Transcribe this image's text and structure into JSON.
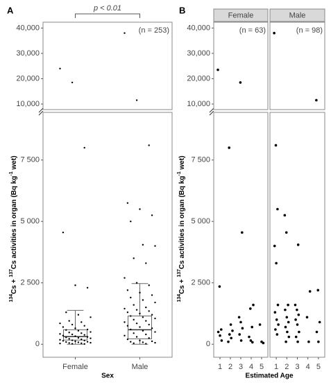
{
  "chart_data": [
    {
      "type": "box",
      "panel_label": "A",
      "annotation": "p < 0.01",
      "n_label": "(n = 253)",
      "x_label": "Sex",
      "y_label": [
        {
          "text": "134",
          "style": "sup"
        },
        {
          "text": "Cs + ",
          "style": "normal"
        },
        {
          "text": "137",
          "style": "sup"
        },
        {
          "text": "Cs activities in organ (Bq kg",
          "style": "normal"
        },
        {
          "text": "-1",
          "style": "sup"
        },
        {
          "text": " wet)",
          "style": "normal"
        }
      ],
      "categories": [
        "Female",
        "Male"
      ],
      "boxes": [
        {
          "low": 0,
          "q1": 170,
          "median": 310,
          "q3": 590,
          "high": 1380
        },
        {
          "low": 0,
          "q1": 220,
          "median": 590,
          "q3": 1150,
          "high": 2470
        }
      ],
      "points": [
        [
          24000,
          18500,
          8000,
          4550,
          2400,
          2300,
          1300,
          1200,
          1100,
          950,
          900,
          850,
          800,
          750,
          700,
          650,
          600,
          580,
          550,
          500,
          480,
          450,
          420,
          400,
          380,
          350,
          330,
          300,
          280,
          260,
          240,
          220,
          200,
          180,
          160,
          150,
          140,
          120,
          100,
          90,
          80,
          60,
          50,
          40,
          30,
          20,
          10
        ],
        [
          38000,
          11500,
          8100,
          5750,
          5500,
          5250,
          5000,
          4050,
          4000,
          3500,
          3300,
          2700,
          2500,
          2400,
          2200,
          2100,
          2000,
          1900,
          1800,
          1700,
          1600,
          1500,
          1450,
          1400,
          1350,
          1300,
          1250,
          1200,
          1150,
          1100,
          1050,
          1000,
          950,
          900,
          850,
          800,
          750,
          700,
          650,
          600,
          550,
          500,
          450,
          400,
          350,
          300,
          250,
          200,
          150,
          120,
          100,
          80,
          60,
          40,
          20
        ]
      ],
      "color": "#000000",
      "ylim": [
        -530,
        9440
      ],
      "yticks": [
        0,
        {
          "value": 2500,
          "label": "2 500"
        },
        {
          "value": 5000,
          "label": "5 000"
        },
        {
          "value": 7500,
          "label": "7 500"
        }
      ],
      "ylim_upper": [
        7800,
        42300
      ],
      "yticks_upper": [
        {
          "value": 10000,
          "label": "10,000"
        },
        {
          "value": 20000,
          "label": "20,000"
        },
        {
          "value": 30000,
          "label": "30,000"
        },
        {
          "value": 40000,
          "label": "40,000"
        }
      ]
    },
    {
      "type": "scatter",
      "panel_label": "B",
      "x_label": "Estimated Age",
      "y_label": [
        {
          "text": "134",
          "style": "sup"
        },
        {
          "text": "Cs + ",
          "style": "normal"
        },
        {
          "text": "137",
          "style": "sup"
        },
        {
          "text": "Cs activities in organ (Bq kg",
          "style": "normal"
        },
        {
          "text": "-1",
          "style": "sup"
        },
        {
          "text": " wet)",
          "style": "normal"
        }
      ],
      "color": "#000000",
      "facets": [
        {
          "name": "Female",
          "n_label": "(n = 63)",
          "x": [
            1,
            1,
            1,
            1,
            1,
            1,
            2,
            2,
            2,
            2,
            2,
            2,
            3,
            3,
            3,
            3,
            3,
            3,
            3,
            4,
            4,
            4,
            4,
            4,
            4,
            5,
            5,
            5
          ],
          "y": [
            23500,
            2350,
            600,
            500,
            350,
            150,
            8000,
            800,
            550,
            400,
            250,
            100,
            18500,
            4550,
            1100,
            900,
            650,
            400,
            150,
            1600,
            1450,
            700,
            300,
            150,
            80,
            800,
            100,
            50
          ]
        },
        {
          "name": "Male",
          "n_label": "(n = 98)",
          "x": [
            1,
            1,
            1,
            1,
            1,
            1,
            1,
            1,
            1,
            1,
            1,
            2,
            2,
            2,
            2,
            2,
            2,
            2,
            2,
            2,
            2,
            3,
            3,
            3,
            3,
            3,
            3,
            3,
            3,
            3,
            4,
            4,
            4,
            5,
            5,
            5,
            5,
            5
          ],
          "y": [
            38000,
            8100,
            5500,
            4000,
            3300,
            1600,
            1300,
            1000,
            800,
            600,
            400,
            5250,
            4550,
            1600,
            1400,
            1100,
            900,
            700,
            500,
            300,
            100,
            4050,
            1600,
            1400,
            1200,
            1000,
            800,
            500,
            300,
            100,
            2150,
            1100,
            100,
            11500,
            2200,
            900,
            500,
            100
          ]
        }
      ],
      "xlim": [
        0.4,
        5.6
      ],
      "xticks": [
        1,
        2,
        3,
        4,
        5
      ],
      "ylim": [
        -530,
        9440
      ],
      "yticks": [
        0,
        {
          "value": 2500,
          "label": "2 500"
        },
        {
          "value": 5000,
          "label": "5 000"
        },
        {
          "value": 7500,
          "label": "7 500"
        }
      ],
      "ylim_upper": [
        7800,
        42300
      ],
      "yticks_upper": [
        {
          "value": 10000,
          "label": "10,000"
        },
        {
          "value": 20000,
          "label": "20,000"
        },
        {
          "value": 30000,
          "label": "30,000"
        },
        {
          "value": 40000,
          "label": "40,000"
        }
      ]
    }
  ]
}
